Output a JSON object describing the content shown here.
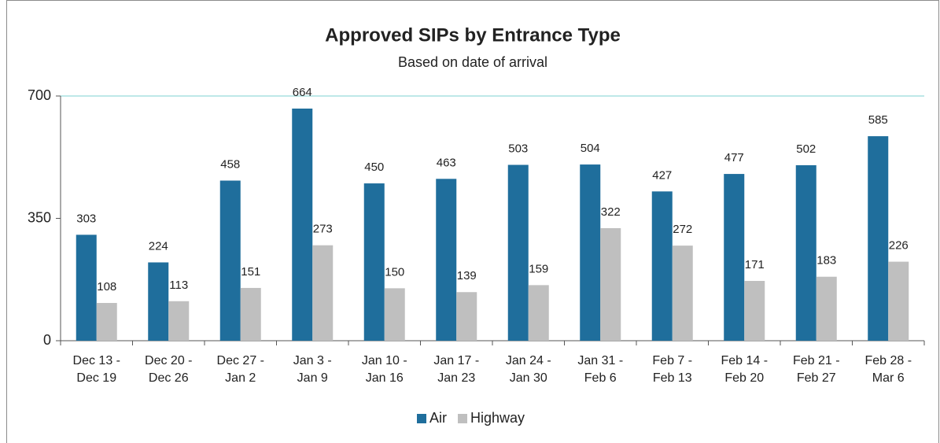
{
  "chart_data": {
    "type": "bar",
    "title": "Approved SIPs by Entrance Type",
    "subtitle": "Based on date of arrival",
    "categories": [
      "Dec 13 - Dec 19",
      "Dec 20 - Dec 26",
      "Dec 27 - Jan 2",
      "Jan 3 - Jan 9",
      "Jan 10 - Jan 16",
      "Jan 17 - Jan 23",
      "Jan 24 - Jan 30",
      "Jan 31 - Feb 6",
      "Feb 7 - Feb 13",
      "Feb 14 - Feb 20",
      "Feb 21 - Feb 27",
      "Feb 28 - Mar 6"
    ],
    "series": [
      {
        "name": "Air",
        "color": "#1f6e9c",
        "values": [
          303,
          224,
          458,
          664,
          450,
          463,
          503,
          504,
          427,
          477,
          502,
          585
        ]
      },
      {
        "name": "Highway",
        "color": "#bfbfbf",
        "values": [
          108,
          113,
          151,
          273,
          150,
          139,
          159,
          322,
          272,
          171,
          183,
          226
        ]
      }
    ],
    "ylim": [
      0,
      700
    ],
    "yticks": [
      0,
      350,
      700
    ],
    "grid": false,
    "legend": "bottom"
  }
}
